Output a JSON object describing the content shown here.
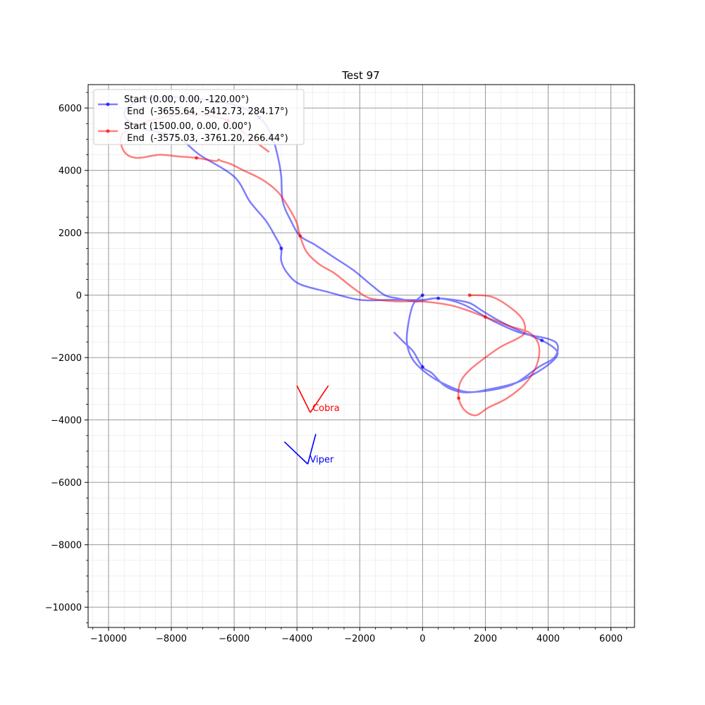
{
  "chart_data": {
    "type": "line",
    "title": "Test 97",
    "xlabel": "",
    "ylabel": "",
    "xlim": [
      -10650,
      6750
    ],
    "ylim": [
      -10650,
      6750
    ],
    "x_ticks": [
      -10000,
      -8000,
      -6000,
      -4000,
      -2000,
      0,
      2000,
      4000,
      6000
    ],
    "y_ticks": [
      -10000,
      -8000,
      -6000,
      -4000,
      -2000,
      0,
      2000,
      4000,
      6000
    ],
    "x_tick_labels": [
      "−10000",
      "−8000",
      "−6000",
      "−4000",
      "−2000",
      "0",
      "2000",
      "4000",
      "6000"
    ],
    "y_tick_labels": [
      "−10000",
      "−8000",
      "−6000",
      "−4000",
      "−2000",
      "0",
      "2000",
      "4000",
      "6000"
    ],
    "grid": {
      "major": true,
      "minor": true
    },
    "legend_position": "top-left",
    "series": [
      {
        "name": "Start (0.00, 0.00, -120.00°)\n End  (-3655.64, -5412.73, 284.17°)",
        "legend_lines": [
          "Start (0.00, 0.00, -120.00°)",
          " End  (-3655.64, -5412.73, 284.17°)"
        ],
        "color": "#0000ff",
        "annotation": "Viper",
        "x": [
          0,
          -300,
          -450,
          -500,
          -350,
          0,
          600,
          1400,
          2200,
          3000,
          3600,
          4100,
          4300,
          4200,
          3800,
          3000,
          2400,
          1900,
          1500,
          1000,
          400,
          0,
          -1000,
          -2000,
          -3000,
          -3900,
          -4300,
          -4500,
          -4500,
          -4700,
          -5000,
          -5500,
          -6000,
          -7100,
          -7700,
          -8300,
          -9100,
          -9500,
          -9200,
          -8400,
          -7200,
          -6000,
          -5200,
          -4800,
          -4600,
          -4500,
          -4450,
          -4200,
          -3900,
          -3400,
          -2800,
          -2200,
          -1600,
          -1200,
          -800,
          -200,
          500,
          1300,
          2200,
          3100,
          4000,
          4300,
          4200,
          3700,
          3000,
          2400,
          1700,
          1200,
          700,
          300,
          0,
          -300,
          -600,
          -900
        ],
        "y": [
          0,
          -300,
          -900,
          -1500,
          -2000,
          -2400,
          -2800,
          -3100,
          -3000,
          -2800,
          -2500,
          -2150,
          -1900,
          -1700,
          -1450,
          -1100,
          -800,
          -500,
          -250,
          -150,
          -100,
          -150,
          -150,
          -150,
          100,
          350,
          700,
          1100,
          1500,
          1900,
          2400,
          3000,
          3800,
          4500,
          5000,
          5200,
          5400,
          5800,
          6150,
          6350,
          6300,
          6100,
          5700,
          5100,
          4400,
          3800,
          3000,
          2400,
          1900,
          1600,
          1200,
          800,
          300,
          0,
          -100,
          -200,
          -100,
          -300,
          -800,
          -1200,
          -1400,
          -1600,
          -2000,
          -2300,
          -2800,
          -3000,
          -3100,
          -3100,
          -2900,
          -2500,
          -2300,
          -1800,
          -1500,
          -1200
        ]
      },
      {
        "name": "Start (1500.00, 0.00, 0.00°)\n End  (-3575.03, -3761.20, 266.44°)",
        "legend_lines": [
          "Start (1500.00, 0.00, 0.00°)",
          " End  (-3575.03, -3761.20, 266.44°)"
        ],
        "color": "#ff0000",
        "annotation": "Cobra",
        "x": [
          1500,
          2200,
          2800,
          3200,
          3250,
          3000,
          2500,
          2000,
          1500,
          1200,
          1150,
          1350,
          1700,
          2100,
          2700,
          3300,
          3650,
          3700,
          3400,
          2800,
          2000,
          1000,
          0,
          -800,
          -1400,
          -1800,
          -2300,
          -2800,
          -3300,
          -3700,
          -3900,
          -4000,
          -4200,
          -4600,
          -5100,
          -5700,
          -6100,
          -6400,
          -6500,
          -6600,
          -7200,
          -7800,
          -8400,
          -9100,
          -9500,
          -9600,
          -9200,
          -8500,
          -7600,
          -6800,
          -6200,
          -5800,
          -5300,
          -4900
        ],
        "y": [
          0,
          -50,
          -400,
          -800,
          -1200,
          -1400,
          -1650,
          -2000,
          -2400,
          -2800,
          -3300,
          -3700,
          -3850,
          -3600,
          -3300,
          -2800,
          -2200,
          -1600,
          -1200,
          -1000,
          -700,
          -350,
          -200,
          -200,
          -150,
          -50,
          300,
          700,
          1000,
          1400,
          1900,
          2300,
          2700,
          3300,
          3700,
          4000,
          4200,
          4300,
          4350,
          4300,
          4400,
          4450,
          4500,
          4400,
          4600,
          5100,
          5400,
          5650,
          5800,
          5750,
          5600,
          5300,
          4900,
          4600
        ]
      }
    ],
    "arrows": [
      {
        "name": "Viper",
        "color": "#0000ff",
        "tip": [
          -3655.64,
          -5412.73
        ],
        "ends": [
          [
            -4400,
            -4700
          ],
          [
            -3400,
            -4450
          ]
        ]
      },
      {
        "name": "Cobra",
        "color": "#ff0000",
        "tip": [
          -3575.03,
          -3761.2
        ],
        "ends": [
          [
            -4000,
            -2900
          ],
          [
            -3000,
            -2900
          ]
        ]
      }
    ]
  }
}
